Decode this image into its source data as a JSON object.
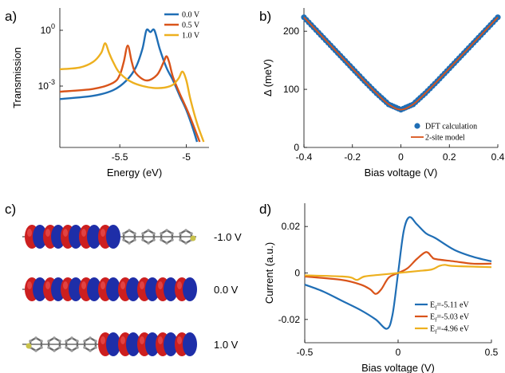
{
  "panels": {
    "a": "a)",
    "b": "b)",
    "c": "c)",
    "d": "d)"
  },
  "chart_data": [
    {
      "type": "line",
      "panel": "a",
      "xlabel": "Energy (eV)",
      "ylabel": "Transmission",
      "yscale": "log",
      "xlim": [
        -5.95,
        -4.83
      ],
      "xticks": [
        "-5.5",
        "-5"
      ],
      "yticks": [
        "10^0",
        "10^-3"
      ],
      "legend_position": "top-right",
      "series": [
        {
          "name": "0.0 V",
          "color": "#1f6eb5",
          "x": [
            -5.95,
            -5.7,
            -5.55,
            -5.45,
            -5.38,
            -5.33,
            -5.3,
            -5.27,
            -5.24,
            -5.2,
            -5.15,
            -5.1,
            -5.05,
            -5.0,
            -4.95,
            -4.92
          ],
          "y": [
            0.0002,
            0.0003,
            0.0006,
            0.002,
            0.01,
            0.1,
            1.0,
            0.8,
            1.0,
            0.1,
            0.01,
            0.002,
            0.0003,
            5e-05,
            5e-06,
            1e-06
          ]
        },
        {
          "name": "0.5 V",
          "color": "#d9541a",
          "x": [
            -5.95,
            -5.7,
            -5.55,
            -5.5,
            -5.47,
            -5.44,
            -5.41,
            -5.38,
            -5.3,
            -5.22,
            -5.17,
            -5.15,
            -5.13,
            -5.1,
            -5.05,
            -4.98,
            -4.9
          ],
          "y": [
            0.0005,
            0.0007,
            0.0015,
            0.004,
            0.02,
            0.15,
            0.02,
            0.005,
            0.002,
            0.004,
            0.02,
            0.04,
            0.02,
            0.003,
            0.0004,
            3e-05,
            1e-06
          ]
        },
        {
          "name": "1.0 V",
          "color": "#edb01f",
          "x": [
            -5.95,
            -5.8,
            -5.7,
            -5.64,
            -5.61,
            -5.58,
            -5.55,
            -5.5,
            -5.4,
            -5.25,
            -5.12,
            -5.06,
            -5.03,
            -5.0,
            -4.97,
            -4.92,
            -4.87
          ],
          "y": [
            0.008,
            0.01,
            0.02,
            0.06,
            0.2,
            0.06,
            0.02,
            0.005,
            0.0015,
            0.0008,
            0.001,
            0.0025,
            0.006,
            0.002,
            0.0002,
            1e-05,
            1e-06
          ]
        }
      ]
    },
    {
      "type": "line",
      "panel": "b",
      "xlabel": "Bias voltage (V)",
      "ylabel": "Δ (meV)",
      "xlim": [
        -0.4,
        0.4
      ],
      "ylim": [
        0,
        240
      ],
      "xticks": [
        "-0.4",
        "-0.2",
        "0",
        "0.2",
        "0.4"
      ],
      "yticks": [
        "0",
        "100",
        "200"
      ],
      "legend_position": "bottom-right",
      "series": [
        {
          "name": "DFT calculation",
          "style": "markers",
          "color": "#1f6eb5",
          "x": [
            -0.4,
            -0.35,
            -0.3,
            -0.25,
            -0.2,
            -0.15,
            -0.1,
            -0.05,
            0,
            0.05,
            0.1,
            0.15,
            0.2,
            0.25,
            0.3,
            0.35,
            0.4
          ],
          "y": [
            224,
            202,
            180,
            158,
            136,
            114,
            93,
            74,
            65,
            74,
            93,
            114,
            136,
            158,
            180,
            202,
            224
          ]
        },
        {
          "name": "2-site model",
          "style": "line",
          "color": "#d9541a",
          "x": [
            -0.4,
            -0.35,
            -0.3,
            -0.25,
            -0.2,
            -0.15,
            -0.1,
            -0.05,
            0,
            0.05,
            0.1,
            0.15,
            0.2,
            0.25,
            0.3,
            0.35,
            0.4
          ],
          "y": [
            224,
            202,
            180,
            158,
            136,
            114,
            93,
            74,
            65,
            74,
            93,
            114,
            136,
            158,
            180,
            202,
            224
          ]
        }
      ]
    },
    {
      "type": "line",
      "panel": "d",
      "xlabel": "Bias voltage (V)",
      "ylabel": "Current (a.u.)",
      "xlim": [
        -0.5,
        0.5
      ],
      "ylim": [
        -0.03,
        0.03
      ],
      "xticks": [
        "-0.5",
        "0",
        "0.5"
      ],
      "yticks": [
        "-0.02",
        "0",
        "0.02"
      ],
      "legend_position": "bottom-right",
      "series": [
        {
          "name": "E_f=-5.11 eV",
          "label_main": "E",
          "label_sub": "f",
          "label_rest": "=-5.11 eV",
          "color": "#1f6eb5",
          "x": [
            -0.5,
            -0.4,
            -0.3,
            -0.2,
            -0.12,
            -0.06,
            -0.03,
            0,
            0.03,
            0.06,
            0.1,
            0.15,
            0.2,
            0.3,
            0.4,
            0.5
          ],
          "y": [
            -0.005,
            -0.008,
            -0.012,
            -0.016,
            -0.02,
            -0.024,
            -0.018,
            0,
            0.018,
            0.024,
            0.021,
            0.017,
            0.015,
            0.01,
            0.007,
            0.005
          ]
        },
        {
          "name": "E_f=-5.03 eV",
          "label_main": "E",
          "label_sub": "f",
          "label_rest": "=-5.03 eV",
          "color": "#d9541a",
          "x": [
            -0.5,
            -0.3,
            -0.2,
            -0.15,
            -0.12,
            -0.09,
            -0.05,
            0,
            0.05,
            0.1,
            0.15,
            0.18,
            0.2,
            0.3,
            0.4,
            0.5
          ],
          "y": [
            -0.0015,
            -0.003,
            -0.005,
            -0.007,
            -0.009,
            -0.007,
            -0.002,
            0,
            0.002,
            0.006,
            0.009,
            0.007,
            0.006,
            0.005,
            0.004,
            0.004
          ]
        },
        {
          "name": "E_f=-4.96 eV",
          "label_main": "E",
          "label_sub": "f",
          "label_rest": "=-4.96 eV",
          "color": "#edb01f",
          "x": [
            -0.5,
            -0.3,
            -0.25,
            -0.22,
            -0.18,
            -0.1,
            0,
            0.1,
            0.18,
            0.22,
            0.25,
            0.3,
            0.5
          ],
          "y": [
            -0.001,
            -0.0015,
            -0.002,
            -0.003,
            -0.0015,
            -0.0008,
            0,
            0.0008,
            0.0015,
            0.003,
            0.0035,
            0.003,
            0.0025
          ]
        }
      ]
    }
  ],
  "panel_c": {
    "rows": [
      {
        "voltage_label": "-1.0 V",
        "lobes": "left"
      },
      {
        "voltage_label": "0.0 V",
        "lobes": "full"
      },
      {
        "voltage_label": "1.0 V",
        "lobes": "right"
      }
    ],
    "colors": {
      "positive": "#cc1f1f",
      "negative": "#1e2ea8",
      "carbon": "#6b6b6b",
      "sulfur": "#c9c24a"
    }
  }
}
